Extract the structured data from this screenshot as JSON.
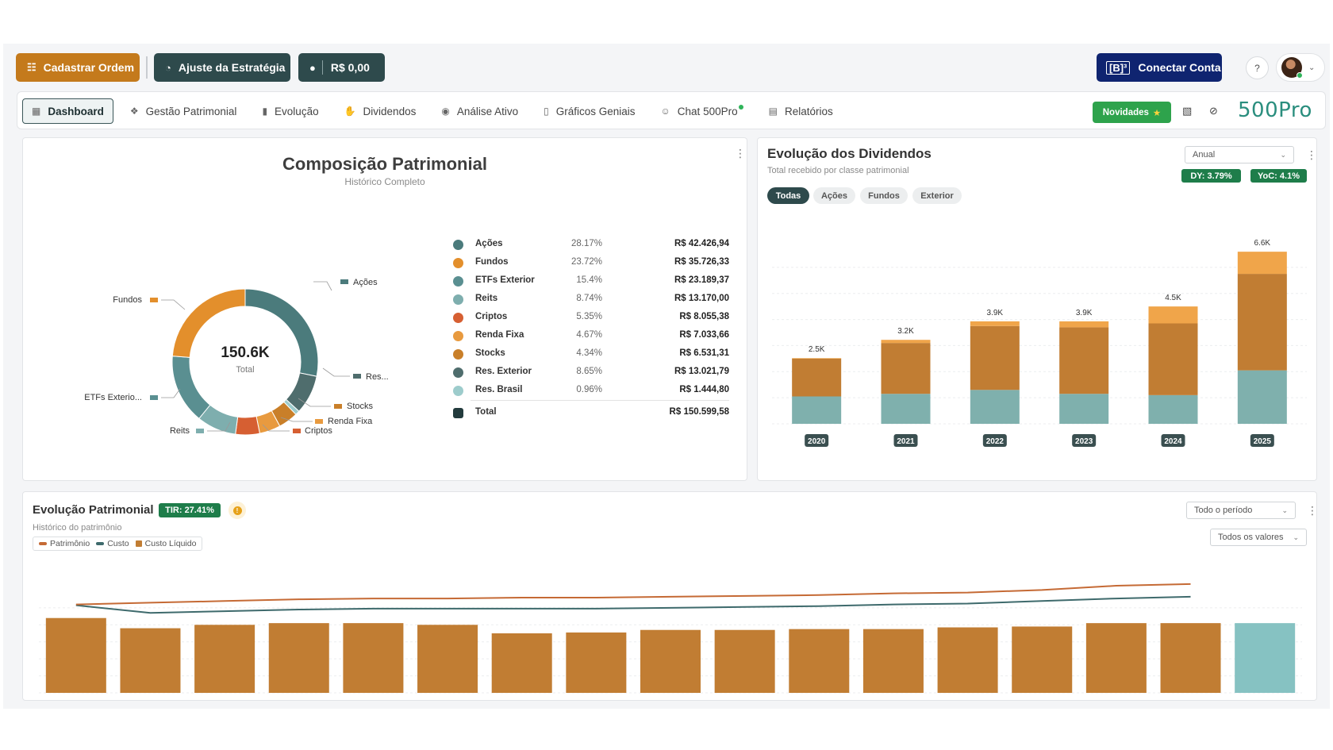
{
  "topbar": {
    "cadastrar_label": "Cadastrar Ordem",
    "ajuste_label": "Ajuste da Estratégia",
    "saldo_label": "R$ 0,00",
    "b3_logo": "[B]³",
    "conectar_label": "Conectar Conta",
    "help": "?"
  },
  "nav": {
    "tabs": [
      {
        "label": "Dashboard",
        "icon": "grid-icon"
      },
      {
        "label": "Gestão Patrimonial",
        "icon": "hand-coins-icon"
      },
      {
        "label": "Evolução",
        "icon": "bar-chart-icon"
      },
      {
        "label": "Dividendos",
        "icon": "hand-money-icon"
      },
      {
        "label": "Análise Ativo",
        "icon": "globe-search-icon"
      },
      {
        "label": "Gráficos Geniais",
        "icon": "column-chart-icon"
      },
      {
        "label": "Chat 500Pro",
        "icon": "users-icon"
      },
      {
        "label": "Relatórios",
        "icon": "document-icon"
      }
    ],
    "novidades": "Novidades",
    "brand": "500Pro"
  },
  "composicao": {
    "title": "Composição Patrimonial",
    "subtitle": "Histórico Completo",
    "center_value": "150.6K",
    "center_label": "Total",
    "donut_labels": {
      "acoes": "Ações",
      "fundos": "Fundos",
      "etfs": "ETFs Exterio...",
      "reits": "Reits",
      "cripto": "Criptos",
      "rf": "Renda Fixa",
      "stocks": "Stocks",
      "res": "Res..."
    },
    "items": [
      {
        "name": "Ações",
        "pct": "28.17%",
        "value": "R$ 42.426,94",
        "share": 28.17,
        "color": "#4b7b7c"
      },
      {
        "name": "Fundos",
        "pct": "23.72%",
        "value": "R$ 35.726,33",
        "share": 23.72,
        "color": "#e38f2c"
      },
      {
        "name": "ETFs Exterior",
        "pct": "15.4%",
        "value": "R$ 23.189,37",
        "share": 15.4,
        "color": "#5a8f91"
      },
      {
        "name": "Reits",
        "pct": "8.74%",
        "value": "R$ 13.170,00",
        "share": 8.74,
        "color": "#7eaeae"
      },
      {
        "name": "Criptos",
        "pct": "5.35%",
        "value": "R$ 8.055,38",
        "share": 5.35,
        "color": "#d65f32"
      },
      {
        "name": "Renda Fixa",
        "pct": "4.67%",
        "value": "R$ 7.033,66",
        "share": 4.67,
        "color": "#e89a3f"
      },
      {
        "name": "Stocks",
        "pct": "4.34%",
        "value": "R$ 6.531,31",
        "share": 4.34,
        "color": "#c97f29"
      },
      {
        "name": "Res. Exterior",
        "pct": "8.65%",
        "value": "R$ 13.021,79",
        "share": 8.65,
        "color": "#4f6d6d"
      },
      {
        "name": "Res. Brasil",
        "pct": "0.96%",
        "value": "R$ 1.444,80",
        "share": 0.96,
        "color": "#9dcccc"
      }
    ],
    "total": {
      "name": "Total",
      "value": "R$ 150.599,58",
      "color": "#233b3d"
    }
  },
  "dividendos": {
    "title": "Evolução dos Dividendos",
    "subtitle": "Total recebido por classe patrimonial",
    "period_select": "Anual",
    "dy": "DY: 3.79%",
    "yoc": "YoC: 4.1%",
    "filters": [
      "Todas",
      "Ações",
      "Fundos",
      "Exterior"
    ]
  },
  "evolucao": {
    "title": "Evolução Patrimonial",
    "tir": "TIR: 27.41%",
    "warn": "!",
    "subtitle": "Histórico do patrimônio",
    "legend": [
      "Patrimônio",
      "Custo",
      "Custo Líquido"
    ],
    "period_select": "Todo o período",
    "values_select": "Todos os valores"
  },
  "colors": {
    "orange": "#c47a1c",
    "dark_teal": "#2e4a4c",
    "b3_navy": "#0f2470",
    "green": "#1e7d4a",
    "teal_bar": "#7fb0ad",
    "brown_bar": "#c17d33",
    "light_orange_bar": "#f0a54a"
  },
  "chart_data": [
    {
      "type": "bar",
      "stacked": true,
      "categories": [
        "2020",
        "2021",
        "2022",
        "2023",
        "2024",
        "2025"
      ],
      "totals_labels": [
        "2.5K",
        "3.2K",
        "3.9K",
        "3.9K",
        "4.5K",
        "6.6K"
      ],
      "series": [
        {
          "values": [
            1050,
            1150,
            1300,
            1150,
            1100,
            2050
          ],
          "color": "#7fb0ad"
        },
        {
          "values": [
            1450,
            1950,
            2450,
            2550,
            2750,
            3700
          ],
          "color": "#c17d33"
        },
        {
          "values": [
            20,
            120,
            180,
            230,
            650,
            850
          ],
          "color": "#f0a54a"
        }
      ],
      "ylim": [
        0,
        7000
      ],
      "grid": true
    },
    {
      "type": "bar",
      "series": [
        {
          "name": "Patrimônio",
          "type": "bar",
          "values": [
            88,
            76,
            80,
            82,
            82,
            80,
            70,
            71,
            74,
            74,
            75,
            75,
            77,
            78,
            82,
            82,
            82
          ]
        },
        {
          "name": "Custo",
          "type": "line",
          "values": [
            103,
            94,
            96,
            98,
            99,
            99,
            99,
            99,
            100,
            101,
            102,
            104,
            105,
            108,
            111,
            113,
            115
          ]
        },
        {
          "name": "Custo Líquido",
          "type": "line",
          "values": [
            104,
            106,
            108,
            110,
            111,
            111,
            112,
            112,
            113,
            114,
            115,
            117,
            118,
            121,
            126,
            128,
            129
          ]
        }
      ],
      "bar_colors": [
        "#c17d33",
        "#c17d33",
        "#c17d33",
        "#c17d33",
        "#c17d33",
        "#c17d33",
        "#c17d33",
        "#c17d33",
        "#c17d33",
        "#c17d33",
        "#c17d33",
        "#c17d33",
        "#c17d33",
        "#c17d33",
        "#c17d33",
        "#c17d33",
        "#86c2c2"
      ],
      "line_colors": {
        "Custo": "#3e6a6c",
        "Custo Líquido": "#c56a35"
      },
      "ylim": [
        0,
        140
      ],
      "grid": true
    }
  ]
}
